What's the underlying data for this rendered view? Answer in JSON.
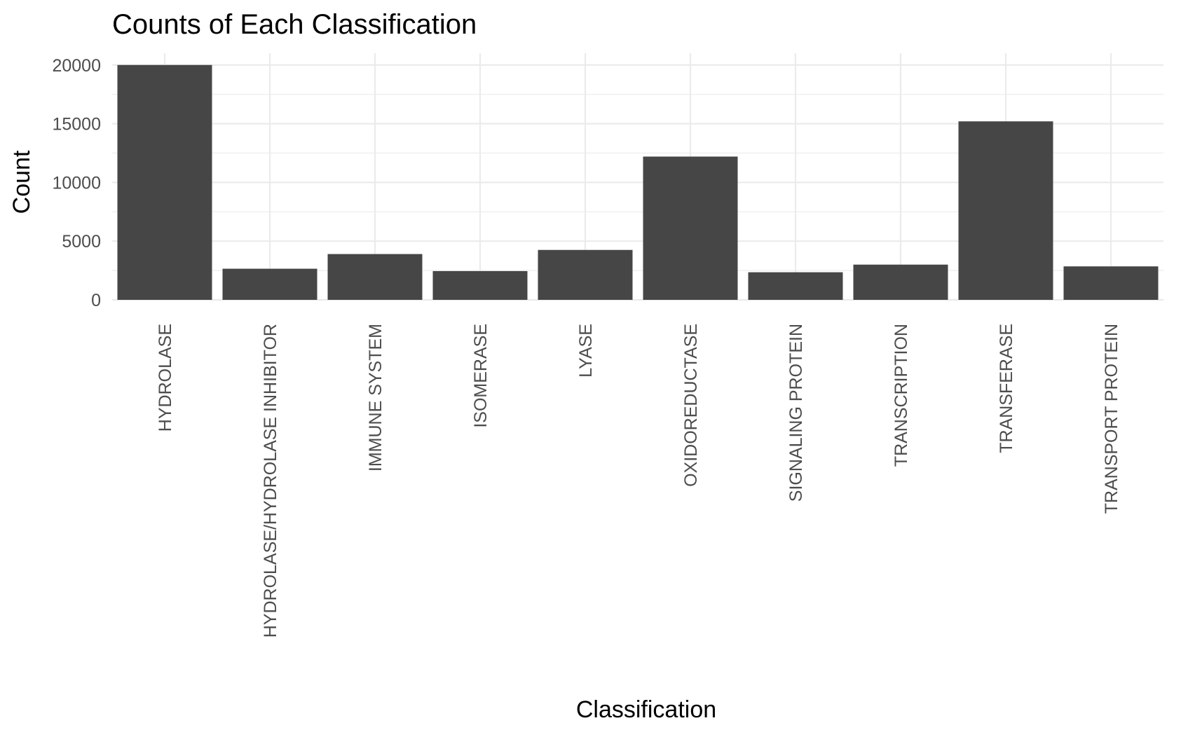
{
  "chart_data": {
    "type": "bar",
    "title": "Counts of Each Classification",
    "xlabel": "Classification",
    "ylabel": "Count",
    "categories": [
      "HYDROLASE",
      "HYDROLASE/HYDROLASE INHIBITOR",
      "IMMUNE SYSTEM",
      "ISOMERASE",
      "LYASE",
      "OXIDOREDUCTASE",
      "SIGNALING PROTEIN",
      "TRANSCRIPTION",
      "TRANSFERASE",
      "TRANSPORT PROTEIN"
    ],
    "values": [
      20000,
      2650,
      3900,
      2450,
      4250,
      12200,
      2350,
      3000,
      15200,
      2850
    ],
    "ylim": [
      0,
      21000
    ],
    "yticks": [
      0,
      5000,
      10000,
      15000,
      20000
    ],
    "ytick_labels": [
      "0",
      "5000",
      "10000",
      "15000",
      "20000"
    ],
    "grid": true,
    "legend": "none",
    "bar_color": "#464646",
    "grid_color": "#ebebeb"
  }
}
